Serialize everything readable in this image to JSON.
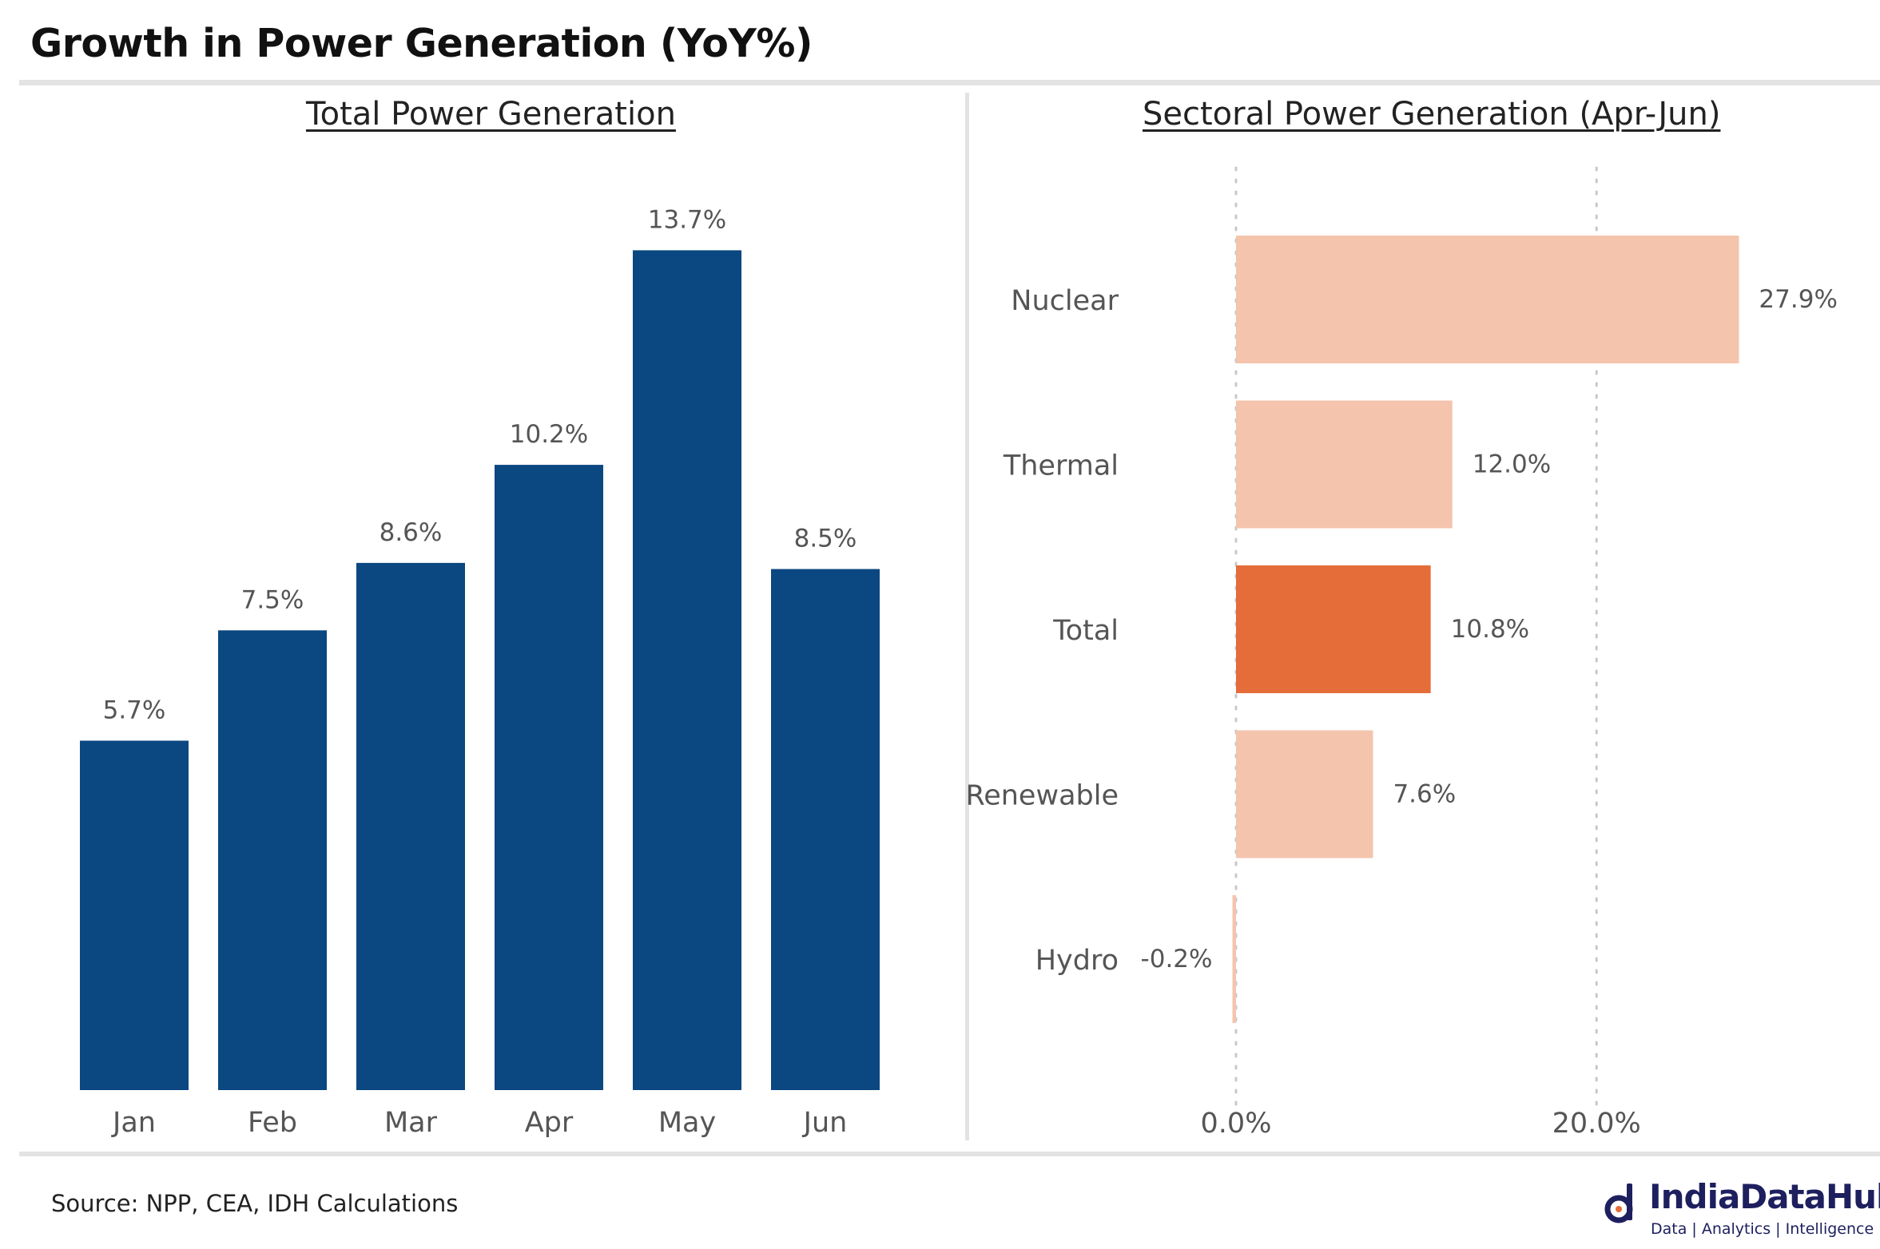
{
  "title": "Growth in Power Generation (YoY%)",
  "source": "Source: NPP, CEA, IDH Calculations",
  "logo": {
    "name": "IndiaDataHub",
    "tagline": "Data | Analytics | Intelligence",
    "color": "#1d1f5e"
  },
  "chart_data": [
    {
      "type": "bar",
      "title": "Total Power Generation",
      "categories": [
        "Jan",
        "Feb",
        "Mar",
        "Apr",
        "May",
        "Jun"
      ],
      "values": [
        5.7,
        7.5,
        8.6,
        10.2,
        13.7,
        8.5
      ],
      "data_labels": [
        "5.7%",
        "7.5%",
        "8.6%",
        "10.2%",
        "13.7%",
        "8.5%"
      ],
      "ylim": [
        0,
        14.5
      ],
      "grid": false,
      "color": "#0b4780"
    },
    {
      "type": "bar",
      "orientation": "horizontal",
      "title": "Sectoral Power Generation (Apr-Jun)",
      "categories": [
        "Nuclear",
        "Thermal",
        "Total",
        "Renewable",
        "Hydro"
      ],
      "values": [
        27.9,
        12.0,
        10.8,
        7.6,
        -0.2
      ],
      "data_labels": [
        "27.9%",
        "12.0%",
        "10.8%",
        "7.6%",
        "-0.2%"
      ],
      "xticks": [
        0,
        20
      ],
      "xtick_labels": [
        "0.0%",
        "20.0%"
      ],
      "xlim": [
        -1.2,
        34
      ],
      "grid": "vertical dotted",
      "color": "#f4c4ad",
      "highlight_color": "#e46d39",
      "highlight": "Total"
    }
  ]
}
